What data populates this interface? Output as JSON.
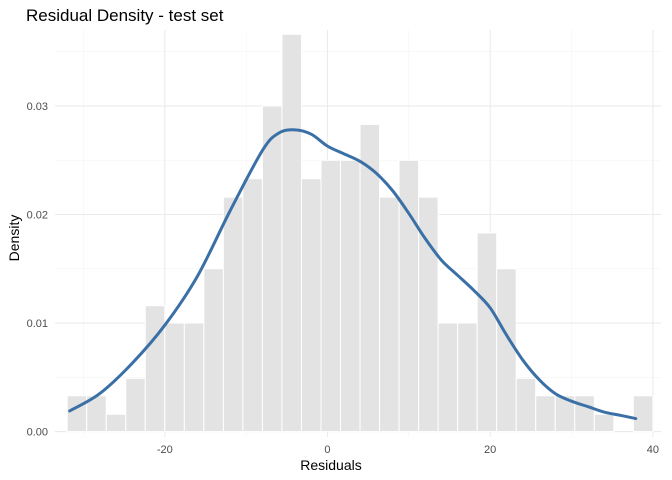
{
  "chart_data": {
    "type": "bar",
    "title": "Residual Density - test set",
    "xlabel": "Residuals",
    "ylabel": "Density",
    "xlim": [
      -33.5,
      41
    ],
    "ylim": [
      -0.0005,
      0.037
    ],
    "x_ticks": [
      -20,
      0,
      20,
      40
    ],
    "x_tick_labels": [
      "-20",
      "0",
      "20",
      "40"
    ],
    "y_ticks": [
      0.0,
      0.01,
      0.02,
      0.03
    ],
    "y_tick_labels": [
      "0.00",
      "0.01",
      "0.02",
      "0.03"
    ],
    "grid": true,
    "legend": "none",
    "bar_color": "#e3e3e3",
    "line_color": "#3b70a6",
    "histogram": {
      "bin_width": 2.4,
      "bin_start": -32.0,
      "densities": [
        0.0033,
        0.0033,
        0.0016,
        0.0049,
        0.0116,
        0.01,
        0.01,
        0.015,
        0.0216,
        0.0233,
        0.03,
        0.0366,
        0.0233,
        0.025,
        0.025,
        0.0283,
        0.0216,
        0.025,
        0.0216,
        0.01,
        0.01,
        0.0183,
        0.015,
        0.0049,
        0.0033,
        0.0033,
        0.0033,
        0.0016,
        0.0,
        0.0033
      ]
    },
    "density_curve": {
      "x": [
        -31.7,
        -28,
        -24,
        -20,
        -16,
        -12,
        -8,
        -6,
        -4,
        -2,
        0,
        2,
        4,
        6,
        8,
        10,
        12,
        14,
        16,
        18,
        20,
        22,
        24,
        26,
        28,
        30,
        32,
        34,
        36,
        37.9
      ],
      "y": [
        0.0019,
        0.0035,
        0.0063,
        0.0098,
        0.0143,
        0.0203,
        0.0259,
        0.0275,
        0.0278,
        0.0274,
        0.0263,
        0.0256,
        0.0249,
        0.0238,
        0.0222,
        0.0201,
        0.0178,
        0.0158,
        0.0144,
        0.013,
        0.0114,
        0.0089,
        0.0066,
        0.0048,
        0.0035,
        0.0028,
        0.0023,
        0.0018,
        0.0015,
        0.0012
      ]
    }
  }
}
